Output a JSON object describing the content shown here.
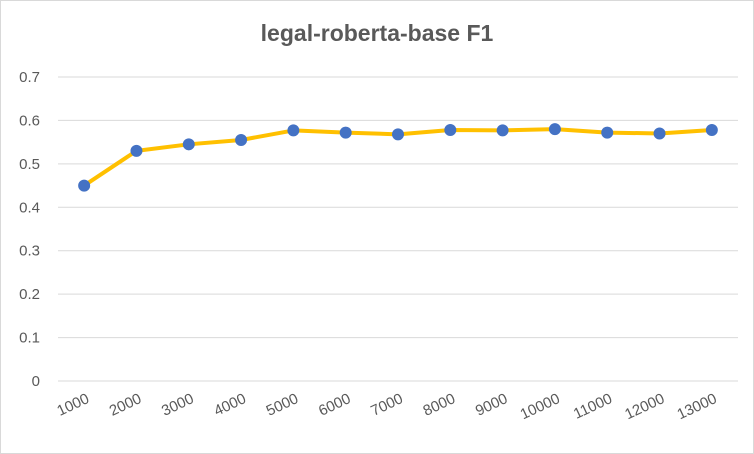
{
  "chart_data": {
    "type": "line",
    "title": "legal-roberta-base F1",
    "xlabel": "",
    "ylabel": "",
    "categories": [
      "1000",
      "2000",
      "3000",
      "4000",
      "5000",
      "6000",
      "7000",
      "8000",
      "9000",
      "10000",
      "11000",
      "12000",
      "13000"
    ],
    "series": [
      {
        "values": [
          0.45,
          0.53,
          0.545,
          0.555,
          0.577,
          0.572,
          0.568,
          0.578,
          0.577,
          0.58,
          0.572,
          0.57,
          0.578
        ]
      }
    ],
    "ylim": [
      0,
      0.7
    ],
    "yticks": [
      "0",
      "0.1",
      "0.2",
      "0.3",
      "0.4",
      "0.5",
      "0.6",
      "0.7"
    ],
    "grid": true,
    "legend": "none",
    "colors": {
      "line": "#FFC000",
      "marker": "#4472C4",
      "grid": "#D9D9D9",
      "text": "#595959"
    }
  }
}
